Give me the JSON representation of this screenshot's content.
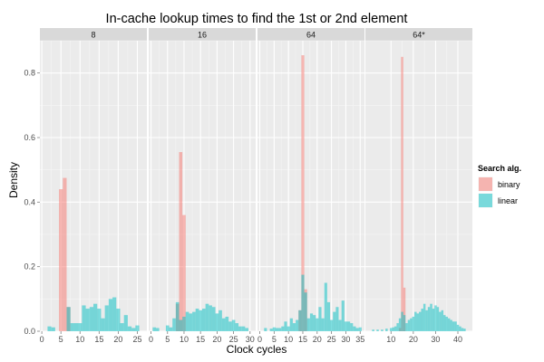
{
  "chart_data": {
    "type": "histogram-facets",
    "title": "In-cache lookup times to find the 1st or 2nd element",
    "xlabel": "Clock cycles",
    "ylabel": "Density",
    "ylim": [
      0,
      0.9
    ],
    "yticks": [
      0.0,
      0.2,
      0.4,
      0.6,
      0.8
    ],
    "ytick_labels": [
      "0.0",
      "0.2",
      "0.4",
      "0.6",
      "0.8"
    ],
    "grid": true,
    "legend": {
      "title": "Search alg.",
      "position": "right",
      "items": [
        {
          "label": "binary",
          "color": "#F8766D"
        },
        {
          "label": "linear",
          "color": "#00BFC4"
        }
      ]
    },
    "facets": [
      {
        "label": "8",
        "xlim": [
          -0.5,
          27.5
        ],
        "xticks": [
          0,
          5,
          10,
          15,
          20,
          25
        ],
        "xtick_labels": [
          "0",
          "5",
          "10",
          "15",
          "20",
          "25"
        ],
        "bin_width": 1,
        "binary": [
          [
            5,
            0.44
          ],
          [
            6,
            0.475
          ],
          [
            7,
            0.075
          ]
        ],
        "linear": [
          [
            2,
            0.015
          ],
          [
            3,
            0.012
          ],
          [
            7,
            0.075
          ],
          [
            8,
            0.025
          ],
          [
            9,
            0.025
          ],
          [
            10,
            0.025
          ],
          [
            11,
            0.08
          ],
          [
            12,
            0.07
          ],
          [
            13,
            0.075
          ],
          [
            14,
            0.085
          ],
          [
            15,
            0.07
          ],
          [
            16,
            0.04
          ],
          [
            17,
            0.08
          ],
          [
            18,
            0.1
          ],
          [
            19,
            0.105
          ],
          [
            20,
            0.07
          ],
          [
            21,
            0.025
          ],
          [
            22,
            0.05
          ],
          [
            23,
            0.015
          ],
          [
            24,
            0.01
          ],
          [
            25,
            0.018
          ]
        ]
      },
      {
        "label": "16",
        "xlim": [
          -0.7,
          31.7
        ],
        "xticks": [
          0,
          5,
          10,
          15,
          20,
          25,
          30
        ],
        "xtick_labels": [
          "0",
          "5",
          "10",
          "15",
          "20",
          "25",
          "30"
        ],
        "bin_width": 1,
        "binary": [
          [
            8,
            0.085
          ],
          [
            9,
            0.555
          ],
          [
            10,
            0.36
          ]
        ],
        "linear": [
          [
            1,
            0.012
          ],
          [
            2,
            0.01
          ],
          [
            5,
            0.018
          ],
          [
            6,
            0.012
          ],
          [
            7,
            0.04
          ],
          [
            8,
            0.09
          ],
          [
            9,
            0.035
          ],
          [
            10,
            0.045
          ],
          [
            11,
            0.06
          ],
          [
            12,
            0.055
          ],
          [
            13,
            0.06
          ],
          [
            14,
            0.07
          ],
          [
            15,
            0.065
          ],
          [
            16,
            0.07
          ],
          [
            17,
            0.085
          ],
          [
            18,
            0.08
          ],
          [
            19,
            0.075
          ],
          [
            20,
            0.055
          ],
          [
            21,
            0.065
          ],
          [
            22,
            0.04
          ],
          [
            23,
            0.045
          ],
          [
            24,
            0.03
          ],
          [
            25,
            0.035
          ],
          [
            26,
            0.025
          ],
          [
            27,
            0.015
          ],
          [
            28,
            0.015
          ],
          [
            29,
            0.01
          ]
        ]
      },
      {
        "label": "64",
        "xlim": [
          -0.8,
          36.5
        ],
        "xticks": [
          0,
          5,
          10,
          15,
          20,
          25,
          30,
          35
        ],
        "xtick_labels": [
          "0",
          "5",
          "10",
          "15",
          "20",
          "25",
          "30",
          "35"
        ],
        "bin_width": 1,
        "binary": [
          [
            14,
            0.065
          ],
          [
            15,
            0.855
          ],
          [
            16,
            0.13
          ]
        ],
        "linear": [
          [
            2,
            0.01
          ],
          [
            4,
            0.008
          ],
          [
            5,
            0.012
          ],
          [
            6,
            0.01
          ],
          [
            7,
            0.01
          ],
          [
            8,
            0.015
          ],
          [
            9,
            0.03
          ],
          [
            10,
            0.015
          ],
          [
            11,
            0.04
          ],
          [
            12,
            0.025
          ],
          [
            13,
            0.035
          ],
          [
            14,
            0.065
          ],
          [
            15,
            0.175
          ],
          [
            16,
            0.12
          ],
          [
            17,
            0.04
          ],
          [
            18,
            0.055
          ],
          [
            19,
            0.05
          ],
          [
            20,
            0.04
          ],
          [
            21,
            0.075
          ],
          [
            22,
            0.04
          ],
          [
            23,
            0.15
          ],
          [
            24,
            0.09
          ],
          [
            25,
            0.035
          ],
          [
            26,
            0.06
          ],
          [
            27,
            0.075
          ],
          [
            28,
            0.035
          ],
          [
            29,
            0.095
          ],
          [
            30,
            0.03
          ],
          [
            31,
            0.03
          ],
          [
            32,
            0.025
          ],
          [
            33,
            0.015
          ],
          [
            34,
            0.01
          ],
          [
            35,
            0.012
          ]
        ]
      },
      {
        "label": "64*",
        "xlim": [
          -1.5,
          46.5
        ],
        "xticks": [
          10,
          20,
          30,
          40
        ],
        "xtick_labels": [
          "10",
          "20",
          "30",
          "40"
        ],
        "bin_width": 1,
        "binary": [
          [
            14,
            0.01
          ],
          [
            15,
            0.85
          ],
          [
            16,
            0.135
          ]
        ],
        "linear": [
          [
            2,
            0.005
          ],
          [
            4,
            0.005
          ],
          [
            6,
            0.005
          ],
          [
            8,
            0.008
          ],
          [
            10,
            0.01
          ],
          [
            11,
            0.012
          ],
          [
            12,
            0.015
          ],
          [
            13,
            0.025
          ],
          [
            14,
            0.04
          ],
          [
            15,
            0.06
          ],
          [
            16,
            0.05
          ],
          [
            17,
            0.025
          ],
          [
            18,
            0.035
          ],
          [
            19,
            0.04
          ],
          [
            20,
            0.045
          ],
          [
            21,
            0.06
          ],
          [
            22,
            0.055
          ],
          [
            23,
            0.06
          ],
          [
            24,
            0.07
          ],
          [
            25,
            0.085
          ],
          [
            26,
            0.065
          ],
          [
            27,
            0.075
          ],
          [
            28,
            0.085
          ],
          [
            29,
            0.07
          ],
          [
            30,
            0.08
          ],
          [
            31,
            0.075
          ],
          [
            32,
            0.06
          ],
          [
            33,
            0.065
          ],
          [
            34,
            0.05
          ],
          [
            35,
            0.045
          ],
          [
            36,
            0.04
          ],
          [
            37,
            0.035
          ],
          [
            38,
            0.03
          ],
          [
            39,
            0.03
          ],
          [
            40,
            0.02
          ],
          [
            41,
            0.015
          ],
          [
            42,
            0.01
          ],
          [
            43,
            0.008
          ]
        ]
      }
    ]
  }
}
